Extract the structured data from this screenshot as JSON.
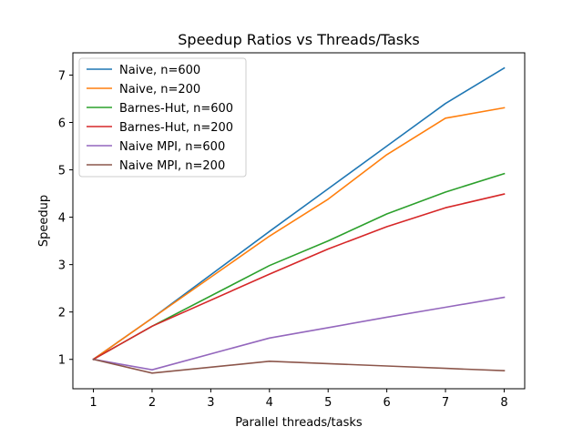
{
  "chart_data": {
    "type": "line",
    "title": "Speedup Ratios vs Threads/Tasks",
    "xlabel": "Parallel threads/tasks",
    "ylabel": "Speedup",
    "x": [
      1,
      2,
      4,
      5,
      6,
      7,
      8
    ],
    "xticks": [
      "1",
      "2",
      "3",
      "4",
      "5",
      "6",
      "7",
      "8"
    ],
    "yticks": [
      "1",
      "2",
      "3",
      "4",
      "5",
      "6",
      "7"
    ],
    "xlim": [
      0.65,
      8.35
    ],
    "ylim": [
      0.38,
      7.47
    ],
    "grid": false,
    "legend_position": "top-left",
    "series": [
      {
        "name": "Naive, n=600",
        "color": "#1f77b4",
        "values": [
          1.0,
          1.87,
          3.7,
          4.6,
          5.5,
          6.4,
          7.15
        ]
      },
      {
        "name": "Naive, n=200",
        "color": "#ff7f0e",
        "values": [
          1.0,
          1.87,
          3.6,
          4.38,
          5.32,
          6.09,
          6.31
        ]
      },
      {
        "name": "Barnes-Hut, n=600",
        "color": "#2ca02c",
        "values": [
          1.0,
          1.7,
          2.98,
          3.5,
          4.07,
          4.53,
          4.92
        ]
      },
      {
        "name": "Barnes-Hut, n=200",
        "color": "#d62728",
        "values": [
          1.0,
          1.7,
          2.8,
          3.33,
          3.8,
          4.2,
          4.49
        ]
      },
      {
        "name": "Naive MPI, n=600",
        "color": "#9467bd",
        "values": [
          1.0,
          0.78,
          1.45,
          1.67,
          1.89,
          2.1,
          2.31
        ]
      },
      {
        "name": "Naive MPI, n=200",
        "color": "#8c564b",
        "values": [
          1.0,
          0.71,
          0.96,
          0.91,
          0.86,
          0.81,
          0.76
        ]
      }
    ]
  }
}
